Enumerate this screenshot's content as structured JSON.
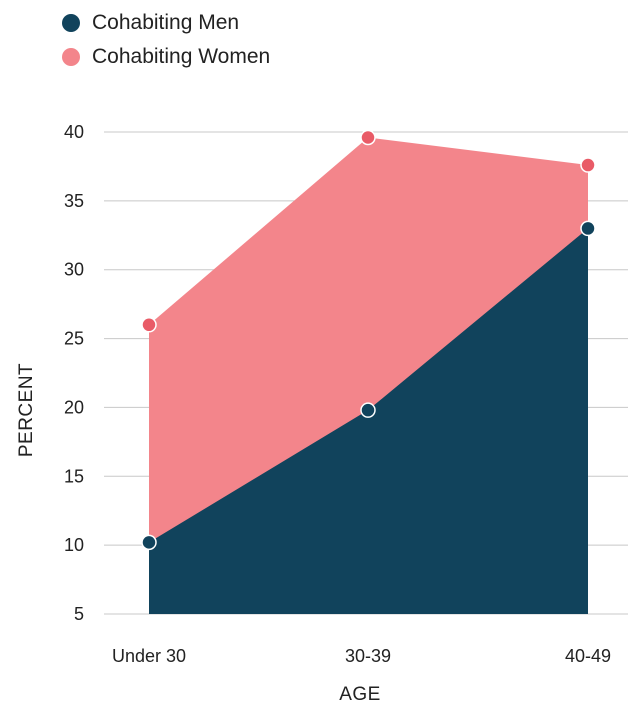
{
  "chart_data": {
    "type": "area",
    "categories": [
      "Under 30",
      "30-39",
      "40-49"
    ],
    "series": [
      {
        "name": "Cohabiting Men",
        "values": [
          10.2,
          19.8,
          33.0
        ],
        "color": "#11435c"
      },
      {
        "name": "Cohabiting Women",
        "values": [
          26.0,
          39.6,
          37.6
        ],
        "color": "#f3858b"
      }
    ],
    "xlabel": "AGE",
    "ylabel": "PERCENT",
    "ylim": [
      5,
      40
    ],
    "yticks": [
      5,
      10,
      15,
      20,
      25,
      30,
      35,
      40
    ],
    "grid": true,
    "legend_position": "top-left",
    "colors": {
      "grid": "#c8c8c8",
      "marker_women": "#e95b67",
      "marker_stroke": "#ffffff"
    }
  }
}
